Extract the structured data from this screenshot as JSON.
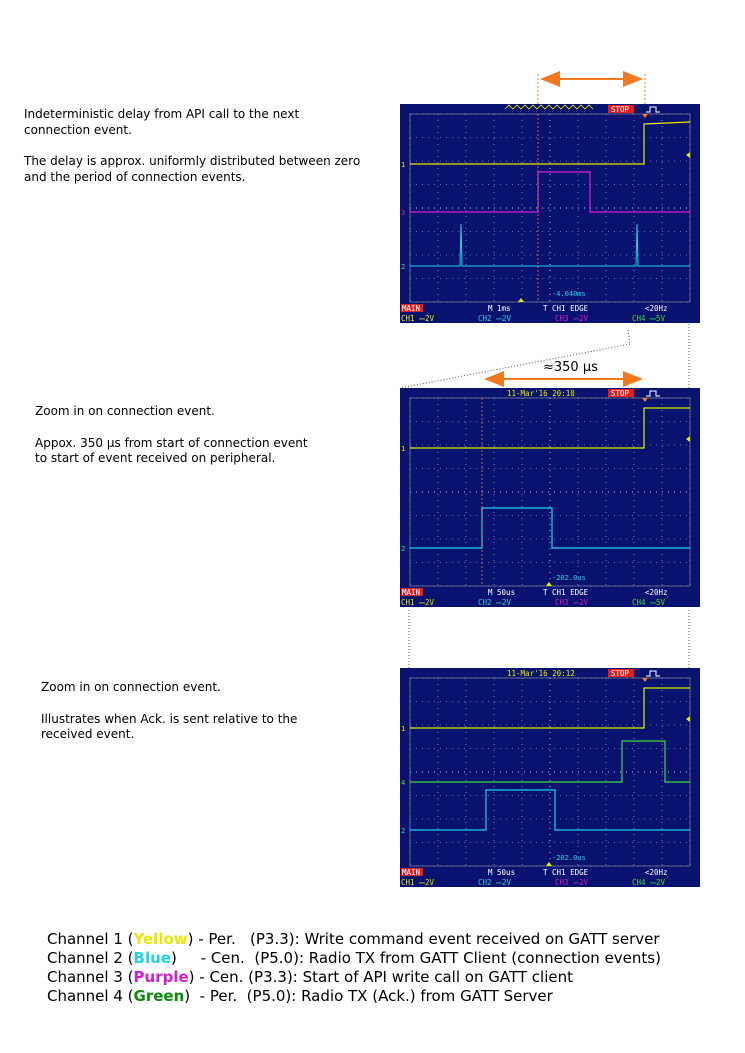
{
  "descriptions": [
    {
      "lines": [
        "Indeterministic delay from API call to the next",
        "connection event."
      ],
      "lines2": [
        "The delay is approx. uniformly distributed between zero",
        "and the period of connection events."
      ]
    },
    {
      "lines": [
        "Zoom in on connection event."
      ],
      "lines2": [
        "Appox. 350 µs from start of connection event",
        "to start of event received on peripheral."
      ]
    },
    {
      "lines": [
        "Zoom in on connection event."
      ],
      "lines2": [
        "Illustrates when Ack. is sent relative to the",
        "received event."
      ]
    }
  ],
  "zoom_annotation": "≈350 µs",
  "scopes": [
    {
      "header_date": "",
      "stop": "STOP",
      "cursor_readout": "-4.040ms",
      "timebase": "M 1ms",
      "trigger": "T CH1  EDGE",
      "freq": "<20Hz",
      "main": "MAIN",
      "ch1": "CH1  ⎓2V",
      "ch2": "CH2  ⎓2V",
      "ch3": "CH3  ⎓2V",
      "ch4": "CH4  ⎓5V",
      "ch_markers": [
        "1",
        "3",
        "2"
      ]
    },
    {
      "header_date": "11-Mar'16 20:10",
      "stop": "STOP",
      "cursor_readout": "-202.0us",
      "timebase": "M 50us",
      "trigger": "T CH1  EDGE",
      "freq": "<20Hz",
      "main": "MAIN",
      "ch1": "CH1  ⎓2V",
      "ch2": "CH2  ⎓2V",
      "ch3": "CH3  ⎓2V",
      "ch4": "CH4  ⎓5V",
      "ch_markers": [
        "1",
        "2"
      ]
    },
    {
      "header_date": "11-Mar'16 20:12",
      "stop": "STOP",
      "cursor_readout": "-202.0us",
      "timebase": "M 50us",
      "trigger": "T CH1  EDGE",
      "freq": "<20Hz",
      "main": "MAIN",
      "ch1": "CH1  ⎓2V",
      "ch2": "CH2  ⎓2V",
      "ch3": "CH3  ⎓2V",
      "ch4": "CH4  ⎓2V",
      "ch_markers": [
        "1",
        "4",
        "2"
      ]
    }
  ],
  "legend": [
    {
      "pre": "Channel 1 (",
      "color_word": "Yellow",
      "post": ") - Per.   (P3.3): Write command event received on GATT server"
    },
    {
      "pre": "Channel 2 (",
      "color_word": "Blue",
      "post": ")     - Cen.  (P5.0): Radio TX from GATT Client (connection events)"
    },
    {
      "pre": "Channel 3 (",
      "color_word": "Purple",
      "post": ") - Cen. (P3.3): Start of API write call on GATT client"
    },
    {
      "pre": "Channel 4 (",
      "color_word": "Green",
      "post": ")  - Per.  (P5.0): Radio TX (Ack.) from GATT Server"
    }
  ],
  "colors": {
    "ch1": "#e8e800",
    "ch2": "#1fd3e6",
    "ch3": "#d01fd0",
    "ch4": "#3fd83f",
    "screen": "#0a1270",
    "orange": "#f07820"
  }
}
